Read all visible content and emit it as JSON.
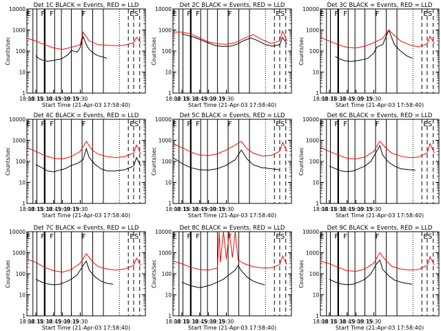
{
  "chart_data": {
    "type": "line",
    "y_scale": "log",
    "ylim": [
      1,
      10000
    ],
    "y_ticks": [
      1,
      10,
      100,
      1000,
      10000
    ],
    "y_tick_labels": [
      "1",
      "10",
      "100",
      "1000",
      "10000"
    ],
    "ylabel": "Counts/sec",
    "x_tick_labels": [
      "18:00",
      "18:15",
      "18:30",
      "18:45",
      "19:00",
      "19:15",
      "19:30"
    ],
    "xlabel": "Start Time (21-Apr-03 17:58:40)",
    "markers": [
      "E",
      "F",
      "F",
      "F",
      "E",
      "S"
    ],
    "colors": {
      "events": "#000000",
      "lld": "#ff0000"
    },
    "panels": [
      {
        "title": "Det 1C BLACK = Events, RED = LLD",
        "series": [
          {
            "name": "Events",
            "x": [
              18.25,
              18.33,
              18.42,
              18.5,
              18.58,
              18.67,
              18.75,
              18.83,
              18.92,
              19.0,
              19.08,
              19.17,
              19.23,
              19.25,
              19.33,
              19.42,
              19.5,
              19.58,
              19.67,
              19.75,
              19.83,
              19.92,
              20.0,
              20.08,
              20.17,
              20.25
            ],
            "y": [
              60,
              45,
              38,
              35,
              33,
              34,
              36,
              38,
              40,
              45,
              55,
              70,
              95,
              110,
              95,
              90,
              150,
              500,
              200,
              120,
              90,
              70,
              60,
              55,
              50,
              45
            ]
          },
          {
            "name": "LLD",
            "x": [
              18.0,
              18.25,
              18.5,
              18.75,
              19.0,
              19.25,
              19.5,
              19.58,
              19.75,
              20.0,
              20.25,
              20.5,
              20.75,
              21.0,
              21.08,
              21.2
            ],
            "y": [
              400,
              300,
              200,
              140,
              120,
              150,
              200,
              800,
              300,
              200,
              190,
              180,
              190,
              250,
              450,
              250
            ]
          }
        ]
      },
      {
        "title": "Det 2C BLACK = Events, RED = LLD",
        "series": [
          {
            "name": "Events",
            "x": [
              18.25,
              18.4,
              18.6,
              18.8,
              19.0,
              19.2,
              19.4,
              19.6,
              19.8,
              20.0,
              20.2,
              20.4,
              20.6,
              20.8,
              21.0,
              21.08,
              21.2
            ],
            "y": [
              650,
              560,
              450,
              330,
              240,
              180,
              165,
              170,
              210,
              320,
              420,
              300,
              200,
              170,
              200,
              450,
              220
            ]
          },
          {
            "name": "LLD",
            "x": [
              18.0,
              18.25,
              18.5,
              18.75,
              19.0,
              19.25,
              19.5,
              19.75,
              20.0,
              20.25,
              20.5,
              20.75,
              21.0,
              21.08,
              21.2
            ],
            "y": [
              800,
              800,
              650,
              420,
              270,
              220,
              210,
              250,
              400,
              600,
              350,
              230,
              300,
              900,
              300
            ]
          }
        ]
      },
      {
        "title": "Det 3C BLACK = Events, RED = LLD",
        "series": [
          {
            "name": "Events",
            "x": [
              18.42,
              18.5,
              18.67,
              18.83,
              19.0,
              19.17,
              19.33,
              19.5,
              19.58,
              19.67,
              19.75,
              19.92,
              20.08,
              20.25,
              20.42,
              20.58
            ],
            "y": [
              55,
              45,
              35,
              32,
              34,
              38,
              45,
              80,
              150,
              180,
              200,
              1000,
              200,
              100,
              60,
              45
            ]
          },
          {
            "name": "LLD",
            "x": [
              18.0,
              18.25,
              18.5,
              18.75,
              19.0,
              19.25,
              19.5,
              19.75,
              19.92,
              20.25,
              20.5,
              20.75,
              21.0,
              21.08,
              21.2
            ],
            "y": [
              450,
              300,
              200,
              150,
              140,
              170,
              250,
              400,
              1000,
              300,
              200,
              160,
              220,
              500,
              230
            ]
          }
        ]
      },
      {
        "title": "Det 4C BLACK = Events, RED = LLD",
        "series": [
          {
            "name": "Events",
            "x": [
              18.25,
              18.42,
              18.58,
              18.75,
              18.92,
              19.08,
              19.25,
              19.42,
              19.58,
              19.67,
              19.75,
              19.92,
              20.08,
              20.25,
              20.5,
              20.75,
              21.0,
              21.08,
              21.2
            ],
            "y": [
              70,
              50,
              35,
              32,
              38,
              45,
              65,
              80,
              120,
              400,
              150,
              70,
              45,
              35,
              35,
              40,
              60,
              150,
              60
            ]
          },
          {
            "name": "LLD",
            "x": [
              18.0,
              18.25,
              18.5,
              18.75,
              19.0,
              19.25,
              19.5,
              19.67,
              19.83,
              20.0,
              20.25,
              20.5,
              20.75,
              21.0,
              21.08,
              21.2
            ],
            "y": [
              450,
              300,
              190,
              140,
              130,
              170,
              300,
              900,
              350,
              220,
              170,
              150,
              170,
              250,
              600,
              230
            ]
          }
        ]
      },
      {
        "title": "Det 5C BLACK = Events, RED = LLD",
        "series": [
          {
            "name": "Events",
            "x": [
              18.0,
              18.25,
              18.5,
              18.75,
              19.0,
              19.25,
              19.5,
              19.75,
              19.92,
              20.08,
              20.25,
              20.5,
              20.75,
              21.0
            ],
            "y": [
              150,
              80,
              50,
              40,
              38,
              45,
              65,
              120,
              350,
              130,
              70,
              50,
              45,
              40
            ]
          },
          {
            "name": "LLD",
            "x": [
              18.0,
              18.25,
              18.5,
              18.75,
              19.0,
              19.25,
              19.5,
              19.75,
              19.92,
              20.08,
              20.25,
              20.5,
              20.75,
              21.0,
              21.08,
              21.2
            ],
            "y": [
              700,
              450,
              280,
              200,
              190,
              230,
              350,
              600,
              900,
              400,
              250,
              180,
              190,
              300,
              800,
              300
            ]
          }
        ]
      },
      {
        "title": "Det 6C BLACK = Events, RED = LLD",
        "series": [
          {
            "name": "Events",
            "x": [
              18.25,
              18.42,
              18.58,
              18.75,
              18.92,
              19.08,
              19.25,
              19.42,
              19.58,
              19.67,
              19.75,
              19.92,
              20.08,
              20.25,
              20.5,
              20.67
            ],
            "y": [
              60,
              45,
              35,
              33,
              35,
              45,
              60,
              100,
              300,
              550,
              200,
              90,
              60,
              45,
              40,
              38
            ]
          },
          {
            "name": "LLD",
            "x": [
              18.0,
              18.25,
              18.5,
              18.75,
              19.0,
              19.25,
              19.5,
              19.67,
              19.83,
              20.0,
              20.25,
              20.5,
              20.75,
              21.0,
              21.08,
              21.2
            ],
            "y": [
              450,
              300,
              200,
              140,
              130,
              160,
              300,
              900,
              450,
              250,
              180,
              150,
              160,
              250,
              700,
              250
            ]
          }
        ]
      },
      {
        "title": "Det 7C BLACK = Events, RED = LLD",
        "series": [
          {
            "name": "Events",
            "x": [
              18.25,
              18.42,
              18.58,
              18.75,
              18.92,
              19.08,
              19.25,
              19.42,
              19.58,
              19.67,
              19.75,
              19.92,
              20.08,
              20.25,
              20.42
            ],
            "y": [
              55,
              40,
              33,
              30,
              32,
              40,
              55,
              90,
              250,
              400,
              150,
              70,
              45,
              35,
              32
            ]
          },
          {
            "name": "LLD",
            "x": [
              18.0,
              18.25,
              18.5,
              18.75,
              19.0,
              19.25,
              19.5,
              19.67,
              19.83,
              20.0,
              20.25,
              20.5,
              20.75,
              21.0,
              21.08,
              21.2
            ],
            "y": [
              500,
              350,
              200,
              140,
              120,
              160,
              320,
              900,
              400,
              220,
              170,
              150,
              170,
              250,
              550,
              250
            ]
          }
        ]
      },
      {
        "title": "Det 8C BLACK = Events, RED = LLD",
        "series": [
          {
            "name": "Events",
            "x": [
              18.25,
              18.42,
              18.58,
              18.75,
              18.92,
              19.08,
              19.25,
              19.42,
              19.58,
              19.75,
              19.83,
              19.92,
              20.08,
              20.25,
              20.42,
              20.58
            ],
            "y": [
              40,
              30,
              25,
              22,
              25,
              30,
              40,
              55,
              90,
              150,
              250,
              140,
              70,
              45,
              35,
              30
            ]
          },
          {
            "name": "LLD",
            "x": [
              18.0,
              18.25,
              18.5,
              18.75,
              19.0,
              19.25,
              19.3,
              19.33,
              19.42,
              19.5,
              19.58,
              19.67,
              19.75,
              19.83,
              20.0,
              20.25,
              20.5,
              20.75,
              21.0,
              21.08,
              21.2
            ],
            "y": [
              400,
              300,
              200,
              160,
              150,
              190,
              10000,
              350,
              10000,
              500,
              10000,
              600,
              10000,
              450,
              300,
              220,
              190,
              190,
              270,
              700,
              280
            ]
          }
        ]
      },
      {
        "title": "Det 9C BLACK = Events, RED = LLD",
        "series": [
          {
            "name": "Events",
            "x": [
              18.25,
              18.42,
              18.58,
              18.75,
              18.92,
              19.08,
              19.25,
              19.42,
              19.58,
              19.67,
              19.75,
              19.92,
              20.08,
              20.25,
              20.42,
              20.58
            ],
            "y": [
              55,
              40,
              33,
              30,
              32,
              40,
              55,
              100,
              300,
              450,
              160,
              80,
              50,
              40,
              35,
              32
            ]
          },
          {
            "name": "LLD",
            "x": [
              18.0,
              18.25,
              18.5,
              18.75,
              19.0,
              19.25,
              19.5,
              19.67,
              19.83,
              20.0,
              20.25,
              20.5,
              20.75,
              21.0,
              21.08,
              21.2
            ],
            "y": [
              400,
              300,
              200,
              140,
              130,
              170,
              320,
              1000,
              450,
              230,
              170,
              150,
              160,
              250,
              650,
              260
            ]
          }
        ]
      }
    ]
  }
}
